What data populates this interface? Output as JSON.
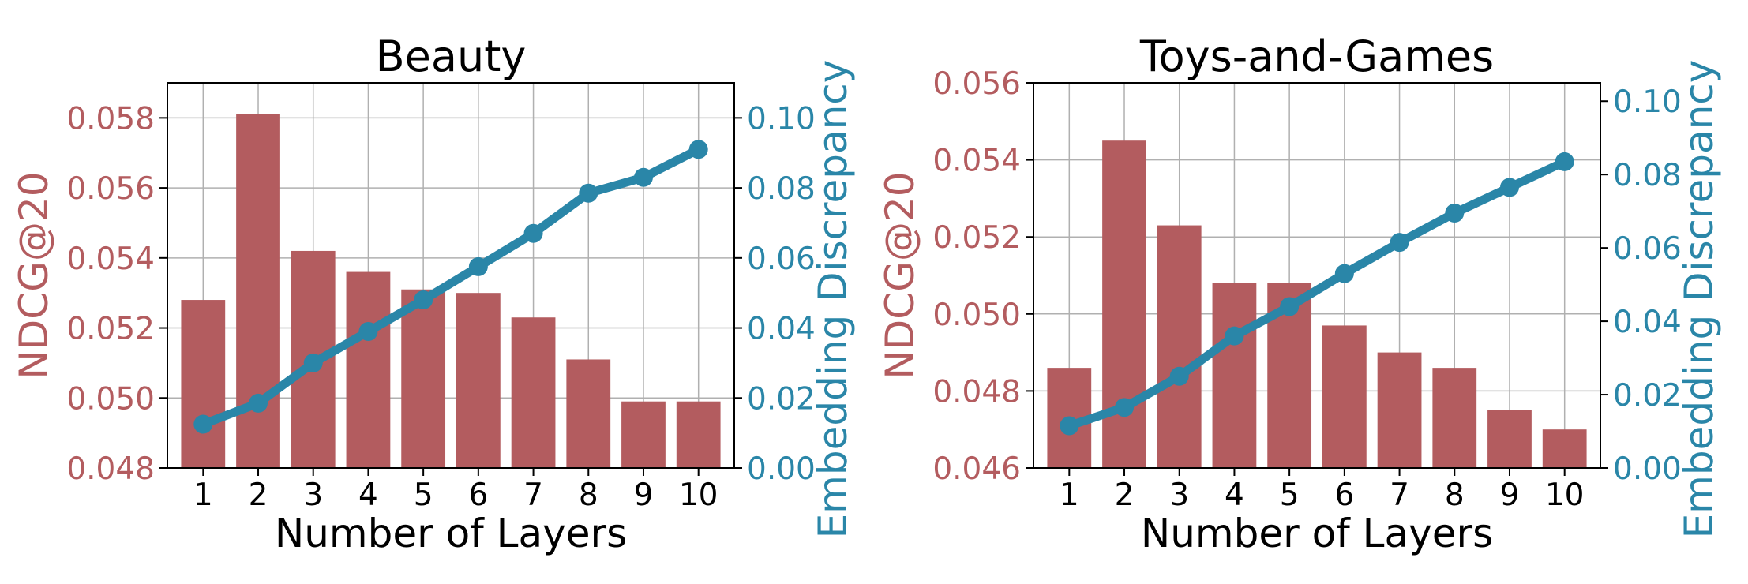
{
  "colors": {
    "bar": "#b35c5f",
    "line": "#2a86a8",
    "left_axis_text": "#b35c5f",
    "right_axis_text": "#2a86a8",
    "grid": "#b0b0b0",
    "text": "#000000"
  },
  "chart_data": [
    {
      "type": "bar",
      "title": "Beauty",
      "xlabel": "Number of Layers",
      "ylabel": "NDCG@20",
      "ylabel_right": "Embedding Discrepancy",
      "categories": [
        "1",
        "2",
        "3",
        "4",
        "5",
        "6",
        "7",
        "8",
        "9",
        "10"
      ],
      "ylim": [
        0.048,
        0.059
      ],
      "y_ticks": [
        "0.048",
        "0.050",
        "0.052",
        "0.054",
        "0.056",
        "0.058"
      ],
      "ylim_right": [
        0.0,
        0.11
      ],
      "y_ticks_right": [
        "0.00",
        "0.02",
        "0.04",
        "0.06",
        "0.08",
        "0.10"
      ],
      "grid": true,
      "series": [
        {
          "kind": "bar",
          "axis": "left",
          "values": [
            0.0528,
            0.0581,
            0.0542,
            0.0536,
            0.0531,
            0.053,
            0.0523,
            0.0511,
            0.0499,
            0.0499
          ]
        },
        {
          "kind": "line",
          "axis": "right",
          "values": [
            0.0125,
            0.0185,
            0.03,
            0.039,
            0.048,
            0.0575,
            0.067,
            0.0785,
            0.083,
            0.091
          ]
        }
      ]
    },
    {
      "type": "bar",
      "title": "Toys-and-Games",
      "xlabel": "Number of Layers",
      "ylabel": "NDCG@20",
      "ylabel_right": "Embedding Discrepancy",
      "categories": [
        "1",
        "2",
        "3",
        "4",
        "5",
        "6",
        "7",
        "8",
        "9",
        "10"
      ],
      "ylim": [
        0.046,
        0.056
      ],
      "y_ticks": [
        "0.046",
        "0.048",
        "0.050",
        "0.052",
        "0.054",
        "0.056"
      ],
      "ylim_right": [
        0.0,
        0.105
      ],
      "y_ticks_right": [
        "0.00",
        "0.02",
        "0.04",
        "0.06",
        "0.08",
        "0.10"
      ],
      "grid": true,
      "series": [
        {
          "kind": "bar",
          "axis": "left",
          "values": [
            0.0486,
            0.0545,
            0.0523,
            0.0508,
            0.0508,
            0.0497,
            0.049,
            0.0486,
            0.0475,
            0.047
          ]
        },
        {
          "kind": "line",
          "axis": "right",
          "values": [
            0.0115,
            0.0165,
            0.025,
            0.036,
            0.044,
            0.053,
            0.0615,
            0.0695,
            0.0765,
            0.0835
          ]
        }
      ]
    }
  ]
}
